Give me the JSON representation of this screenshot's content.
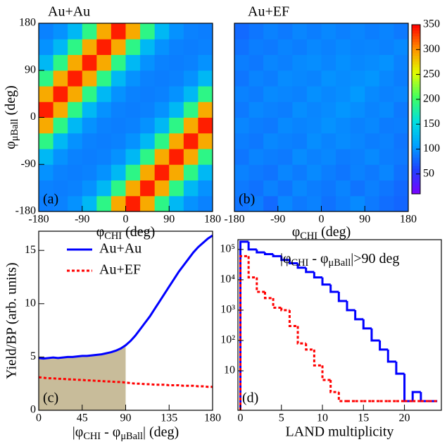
{
  "chart_data": [
    {
      "type": "heatmap",
      "title": "Au+Au",
      "panel_label": "(a)",
      "xbins": [
        -180,
        -150,
        -120,
        -90,
        -60,
        -30,
        0,
        30,
        60,
        90,
        120,
        150,
        180
      ],
      "ybins": [
        -180,
        -150,
        -120,
        -90,
        -60,
        -30,
        0,
        30,
        60,
        90,
        120,
        150,
        180
      ],
      "z": [
        [
          90,
          92,
          100,
          125,
          190,
          290,
          340,
          290,
          190,
          125,
          100,
          92
        ],
        [
          92,
          90,
          92,
          100,
          125,
          190,
          290,
          340,
          290,
          190,
          125,
          100
        ],
        [
          100,
          92,
          90,
          92,
          100,
          125,
          190,
          290,
          340,
          290,
          190,
          125
        ],
        [
          125,
          100,
          92,
          90,
          92,
          100,
          125,
          190,
          290,
          340,
          290,
          190
        ],
        [
          190,
          125,
          100,
          92,
          90,
          92,
          100,
          125,
          190,
          290,
          340,
          290
        ],
        [
          290,
          190,
          125,
          100,
          92,
          90,
          92,
          100,
          125,
          190,
          290,
          340
        ],
        [
          340,
          290,
          190,
          125,
          100,
          92,
          90,
          92,
          100,
          125,
          190,
          290
        ],
        [
          290,
          340,
          290,
          190,
          125,
          100,
          92,
          90,
          92,
          100,
          125,
          190
        ],
        [
          190,
          290,
          340,
          290,
          190,
          125,
          100,
          92,
          90,
          92,
          100,
          125
        ],
        [
          125,
          190,
          290,
          340,
          290,
          190,
          125,
          100,
          92,
          90,
          92,
          100
        ],
        [
          100,
          125,
          190,
          290,
          340,
          290,
          190,
          125,
          100,
          92,
          90,
          92
        ],
        [
          92,
          100,
          125,
          190,
          290,
          340,
          290,
          190,
          125,
          100,
          92,
          90
        ]
      ],
      "zlim": [
        10,
        350
      ],
      "colors": [
        "#7a00ff",
        "#2040ff",
        "#00a0ff",
        "#00e0e0",
        "#40ff60",
        "#e0ff00",
        "#ff9000",
        "#ff0000"
      ],
      "xlim": [
        -180,
        180
      ],
      "ylim": [
        -180,
        180
      ],
      "xticks": [
        -180,
        -90,
        0,
        90,
        180
      ],
      "yticks": [
        -180,
        -90,
        0,
        90,
        180
      ],
      "xlabel": [
        {
          "t": "φ"
        },
        {
          "t": "CHI",
          "sub": true
        },
        {
          "t": " (deg)"
        }
      ],
      "ylabel": [
        {
          "t": "φ"
        },
        {
          "t": "μBall",
          "sub": true
        },
        {
          "t": " (deg)"
        }
      ]
    },
    {
      "type": "heatmap",
      "title": "Au+EF",
      "panel_label": "(b)",
      "xbins": [
        -180,
        -150,
        -120,
        -90,
        -60,
        -30,
        0,
        30,
        60,
        90,
        120,
        150,
        180
      ],
      "ybins": [
        -180,
        -150,
        -120,
        -90,
        -60,
        -30,
        0,
        30,
        60,
        90,
        120,
        150,
        180
      ],
      "z": [
        [
          85,
          90,
          80,
          95,
          88,
          92,
          84,
          90,
          96,
          88,
          82,
          78
        ],
        [
          88,
          84,
          92,
          86,
          95,
          90,
          87,
          93,
          85,
          91,
          86,
          80
        ],
        [
          92,
          88,
          85,
          94,
          89,
          96,
          90,
          86,
          92,
          88,
          94,
          84
        ],
        [
          86,
          93,
          90,
          88,
          97,
          92,
          95,
          89,
          91,
          96,
          90,
          88
        ],
        [
          90,
          87,
          95,
          92,
          90,
          98,
          93,
          97,
          94,
          90,
          92,
          86
        ],
        [
          94,
          90,
          88,
          96,
          93,
          95,
          100,
          96,
          92,
          95,
          89,
          90
        ],
        [
          88,
          95,
          92,
          90,
          98,
          94,
          97,
          102,
          98,
          93,
          96,
          88
        ],
        [
          92,
          89,
          96,
          94,
          92,
          99,
          95,
          98,
          104,
          96,
          92,
          94
        ],
        [
          86,
          93,
          90,
          97,
          95,
          93,
          100,
          97,
          99,
          102,
          95,
          90
        ],
        [
          90,
          87,
          94,
          91,
          96,
          98,
          94,
          99,
          95,
          97,
          100,
          92
        ],
        [
          84,
          90,
          88,
          93,
          90,
          95,
          92,
          96,
          93,
          94,
          92,
          96
        ],
        [
          80,
          86,
          92,
          88,
          94,
          90,
          95,
          91,
          94,
          90,
          93,
          88
        ]
      ],
      "zlim": [
        10,
        350
      ],
      "zticks": [
        50,
        100,
        150,
        200,
        250,
        300,
        350
      ],
      "colorbar": true,
      "colors": [
        "#7a00ff",
        "#2040ff",
        "#00a0ff",
        "#00e0e0",
        "#40ff60",
        "#e0ff00",
        "#ff9000",
        "#ff0000"
      ],
      "xlim": [
        -180,
        180
      ],
      "ylim": [
        -180,
        180
      ],
      "xticks": [
        -180,
        -90,
        0,
        90,
        180
      ],
      "xlabel": [
        {
          "t": "φ"
        },
        {
          "t": "CHI",
          "sub": true
        },
        {
          "t": " (deg)"
        }
      ]
    },
    {
      "type": "line",
      "panel_label": "(c)",
      "x": [
        0,
        5,
        10,
        15,
        20,
        25,
        30,
        35,
        40,
        45,
        50,
        55,
        60,
        65,
        70,
        75,
        80,
        85,
        90,
        95,
        100,
        105,
        110,
        115,
        120,
        125,
        130,
        135,
        140,
        145,
        150,
        155,
        160,
        165,
        170,
        175,
        180
      ],
      "series": [
        {
          "name": "Au+Au",
          "color": "#0000ff",
          "dash": false,
          "values": [
            4.9,
            4.85,
            4.9,
            4.95,
            4.9,
            4.95,
            5.0,
            5.0,
            5.05,
            5.1,
            5.1,
            5.15,
            5.2,
            5.25,
            5.35,
            5.45,
            5.6,
            5.8,
            6.1,
            6.5,
            7.0,
            7.6,
            8.2,
            8.8,
            9.5,
            10.2,
            10.9,
            11.6,
            12.3,
            13.0,
            13.6,
            14.2,
            14.8,
            15.3,
            15.7,
            16.1,
            16.4
          ]
        },
        {
          "name": "Au+EF",
          "color": "#ff0000",
          "dash": true,
          "values": [
            3.1,
            3.05,
            3.0,
            3.0,
            2.95,
            2.95,
            2.9,
            2.9,
            2.85,
            2.85,
            2.8,
            2.8,
            2.75,
            2.75,
            2.7,
            2.7,
            2.65,
            2.65,
            2.6,
            2.55,
            2.5,
            2.5,
            2.45,
            2.45,
            2.4,
            2.4,
            2.4,
            2.35,
            2.35,
            2.35,
            2.3,
            2.3,
            2.3,
            2.25,
            2.25,
            2.2,
            2.2
          ]
        }
      ],
      "shaded_range": [
        0,
        90
      ],
      "shade_color": "#c8bc9a",
      "xlim": [
        0,
        180
      ],
      "ylim": [
        0,
        16.8
      ],
      "xticks": [
        0,
        45,
        90,
        135,
        180
      ],
      "yticks": [
        0,
        5,
        10,
        15
      ],
      "xlabel": [
        {
          "t": "|φ"
        },
        {
          "t": "CHI",
          "sub": true
        },
        {
          "t": " - φ"
        },
        {
          "t": "μBall",
          "sub": true
        },
        {
          "t": "| (deg)"
        }
      ],
      "ylabel": "Yield/BP (arb. units)"
    },
    {
      "type": "histogram",
      "panel_label": "(d)",
      "log_y": true,
      "bins": [
        0,
        1,
        2,
        3,
        4,
        5,
        6,
        7,
        8,
        9,
        10,
        11,
        12,
        13,
        14,
        15,
        16,
        17,
        18,
        19,
        20,
        21,
        22,
        23,
        24
      ],
      "series": [
        {
          "color": "#0000ff",
          "dash": false,
          "values": [
            180000,
            100000,
            80000,
            70000,
            60000,
            45000,
            35000,
            25000,
            18000,
            12000,
            7000,
            4000,
            2000,
            1000,
            500,
            250,
            100,
            50,
            20,
            8,
            1,
            2,
            1,
            1
          ]
        },
        {
          "color": "#ff0000",
          "dash": true,
          "values": [
            60000,
            12000,
            4000,
            2500,
            1200,
            1000,
            300,
            80,
            50,
            15,
            5,
            2,
            1,
            1,
            1,
            1,
            1,
            1,
            1,
            1,
            1,
            1,
            1,
            1
          ]
        }
      ],
      "annotation": [
        {
          "t": "|φ"
        },
        {
          "t": "CHI",
          "sub": true
        },
        {
          "t": " - φ"
        },
        {
          "t": "μBall",
          "sub": true
        },
        {
          "t": "|>90 deg"
        }
      ],
      "xlim": [
        -0.3,
        24.5
      ],
      "ylim": [
        0.5,
        210000
      ],
      "xticks": [
        0,
        5,
        10,
        15,
        20
      ],
      "yticks": [
        10,
        {
          "value": 100,
          "label": "10²"
        },
        {
          "value": 1000,
          "label": "10³"
        },
        {
          "value": 10000,
          "label": "10⁴"
        },
        {
          "value": 100000,
          "label": "10⁵"
        }
      ],
      "xlabel": "LAND multiplicity"
    }
  ]
}
